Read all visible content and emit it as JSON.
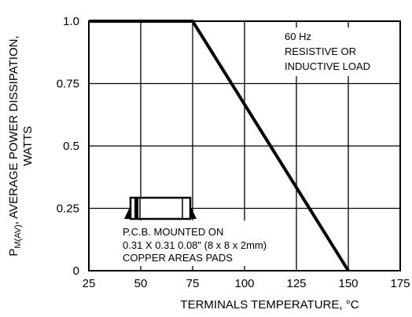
{
  "chart_data": {
    "type": "line",
    "xlabel": "TERMINALS TEMPERATURE, °C",
    "ylabel": {
      "prefix": "P",
      "subscript": "M(AV)",
      "rest": ", AVERAGE POWER DISSIPATION,",
      "line2": "WATTS"
    },
    "xlim": [
      25,
      175
    ],
    "ylim": [
      0,
      1.0
    ],
    "x_ticks": [
      25,
      50,
      75,
      100,
      125,
      150,
      175
    ],
    "x_tick_labels": [
      "25",
      "50",
      "75",
      "100",
      "125",
      "150",
      "175"
    ],
    "y_ticks": [
      0,
      0.25,
      0.5,
      0.75,
      1.0
    ],
    "y_tick_labels": [
      "0",
      "0.25",
      "0.5",
      "0.75",
      "1.0"
    ],
    "grid": true,
    "series": [
      {
        "x": [
          25,
          75,
          150
        ],
        "y": [
          1.0,
          1.0,
          0.0
        ]
      }
    ],
    "annotations": {
      "conditions": [
        "60 Hz",
        "RESISTIVE OR",
        "INDUCTIVE LOAD"
      ],
      "mounting": [
        "P.C.B. MOUNTED ON",
        "0.31 X 0.31 0.08\" (8 x 8 x 2mm)",
        "COPPER AREAS PADS"
      ]
    }
  }
}
